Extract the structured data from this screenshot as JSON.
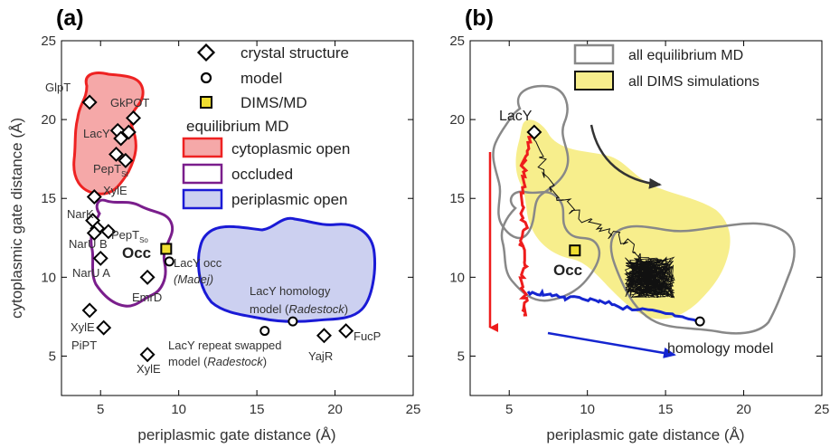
{
  "panels": [
    {
      "label": "(a)",
      "xlabel": "periplasmic gate distance (Å)",
      "ylabel": "cytoplasmic gate distance (Å)"
    },
    {
      "label": "(b)",
      "xlabel": "periplasmic gate distance (Å)",
      "ylabel": ""
    }
  ],
  "legend_a": {
    "crystal": "crystal structure",
    "model": "model",
    "dims": "DIMS/MD",
    "header": "equilibrium MD",
    "cyto": "cytoplasmic open",
    "occl": "occluded",
    "peri": "periplasmic open"
  },
  "legend_b": {
    "eq": "all equilibrium MD",
    "dims": "all DIMS simulations"
  },
  "labels_a": {
    "occ": "Occ",
    "glpt": "GlpT",
    "gkpot": "GkPOT",
    "lacy": "LacY",
    "pept_st": "PepT",
    "pept_st_sub": "St",
    "xyle_top": "XylE",
    "nark": "NarK",
    "pept_so": "PepT",
    "pept_so_sub": "So",
    "naru_b": "NarU B",
    "naru_a": "NarU A",
    "lacy_occ_1": "LacY occ",
    "lacy_occ_2": "(Madej)",
    "emrd": "EmrD",
    "xyle_mid": "XylE",
    "pipt": "PiPT",
    "xyle_bot": "XylE",
    "repeat_1": "LacY repeat swapped",
    "repeat_2a": "model (",
    "repeat_2b": "Radestock",
    "repeat_2c": ")",
    "homol_1": "LacY homology",
    "homol_2a": "model (",
    "homol_2b": "Radestock",
    "homol_2c": ")",
    "yajr": "YajR",
    "fucp": "FucP"
  },
  "labels_b": {
    "lacy": "LacY",
    "occ": "Occ",
    "homology": "homology model"
  },
  "colors": {
    "cytoplasmic_open_edge": "#ee2222",
    "cytoplasmic_open_fill": "#f5a8a8",
    "occluded_edge": "#7a1e8c",
    "periplasmic_open_edge": "#1a1ad6",
    "periplasmic_open_fill": "#ccd0f0",
    "equilibrium_gray": "#888888",
    "dims_fill": "#f7ee8c",
    "dims_marker": "#f0de30",
    "red_trace": "#ee1c1c",
    "blue_trace": "#1525d0"
  },
  "chart_data": [
    {
      "type": "scatter",
      "title": "(a)",
      "xlabel": "periplasmic gate distance (Å)",
      "ylabel": "cytoplasmic gate distance (Å)",
      "xlim": [
        2.5,
        25
      ],
      "ylim": [
        2.5,
        25
      ],
      "xticks": [
        5,
        10,
        15,
        20,
        25
      ],
      "yticks": [
        5,
        10,
        15,
        20,
        25
      ],
      "series": [
        {
          "name": "crystal structure",
          "marker": "diamond",
          "points": [
            {
              "label": "GlpT",
              "x": 4.3,
              "y": 21.1
            },
            {
              "label": "GkPOT",
              "x": 7.1,
              "y": 20.1
            },
            {
              "label": "LacY",
              "x": 6.1,
              "y": 19.3
            },
            {
              "label": "",
              "x": 6.8,
              "y": 19.2
            },
            {
              "label": "",
              "x": 6.3,
              "y": 18.8
            },
            {
              "label": "",
              "x": 6.0,
              "y": 17.8
            },
            {
              "label": "PepT St",
              "x": 6.6,
              "y": 17.4
            },
            {
              "label": "XylE",
              "x": 4.6,
              "y": 15.1
            },
            {
              "label": "NarK",
              "x": 4.5,
              "y": 13.6
            },
            {
              "label": "",
              "x": 4.8,
              "y": 13.1
            },
            {
              "label": "PepT So",
              "x": 5.5,
              "y": 12.9
            },
            {
              "label": "NarU B",
              "x": 4.6,
              "y": 12.8
            },
            {
              "label": "NarU A",
              "x": 5.0,
              "y": 11.2
            },
            {
              "label": "EmrD",
              "x": 8.0,
              "y": 10.0
            },
            {
              "label": "XylE",
              "x": 4.3,
              "y": 7.9
            },
            {
              "label": "PiPT",
              "x": 5.2,
              "y": 6.8
            },
            {
              "label": "XylE",
              "x": 8.0,
              "y": 5.1
            },
            {
              "label": "YajR",
              "x": 19.3,
              "y": 6.3
            },
            {
              "label": "FucP",
              "x": 20.7,
              "y": 6.6
            }
          ]
        },
        {
          "name": "model",
          "marker": "circle",
          "points": [
            {
              "label": "LacY occ (Madej)",
              "x": 9.4,
              "y": 11.0
            },
            {
              "label": "LacY repeat swapped model (Radestock)",
              "x": 15.5,
              "y": 6.6
            },
            {
              "label": "LacY homology model (Radestock)",
              "x": 17.3,
              "y": 7.2
            }
          ]
        },
        {
          "name": "DIMS/MD",
          "marker": "square",
          "points": [
            {
              "label": "Occ",
              "x": 9.2,
              "y": 11.8
            }
          ]
        }
      ],
      "regions": [
        {
          "name": "cytoplasmic open",
          "x_range": [
            3.7,
            9.8
          ],
          "y_range": [
            13.8,
            24.2
          ]
        },
        {
          "name": "occluded",
          "x_range": [
            4.4,
            11.1
          ],
          "y_range": [
            8.1,
            15.2
          ]
        },
        {
          "name": "periplasmic open",
          "x_range": [
            11.5,
            23.8
          ],
          "y_range": [
            7.2,
            13.1
          ]
        }
      ]
    },
    {
      "type": "line",
      "title": "(b)",
      "xlabel": "periplasmic gate distance (Å)",
      "ylabel": "",
      "xlim": [
        2.5,
        25
      ],
      "ylim": [
        2.5,
        25
      ],
      "xticks": [
        5,
        10,
        15,
        20,
        25
      ],
      "yticks": [
        5,
        10,
        15,
        20,
        25
      ],
      "series": [
        {
          "name": "LacY",
          "color": "#ee1c1c",
          "points": [
            {
              "x": 6.6,
              "y": 19.2
            },
            {
              "x": 6.2,
              "y": 18.3
            },
            {
              "x": 5.9,
              "y": 17.1
            },
            {
              "x": 6.0,
              "y": 15.8
            },
            {
              "x": 5.8,
              "y": 14.6
            },
            {
              "x": 6.0,
              "y": 13.2
            },
            {
              "x": 5.7,
              "y": 12.0
            },
            {
              "x": 6.1,
              "y": 10.8
            },
            {
              "x": 5.8,
              "y": 9.6
            },
            {
              "x": 6.1,
              "y": 8.4
            },
            {
              "x": 5.9,
              "y": 7.6
            }
          ]
        },
        {
          "name": "homology model",
          "color": "#1525d0",
          "points": [
            {
              "x": 17.2,
              "y": 7.2
            },
            {
              "x": 15.4,
              "y": 7.8
            },
            {
              "x": 13.2,
              "y": 7.9
            },
            {
              "x": 11.6,
              "y": 8.3
            },
            {
              "x": 10.2,
              "y": 8.5
            },
            {
              "x": 8.6,
              "y": 8.7
            },
            {
              "x": 7.3,
              "y": 8.9
            },
            {
              "x": 6.2,
              "y": 9.1
            }
          ]
        },
        {
          "name": "",
          "color": "#000000",
          "points": [
            {
              "x": 6.6,
              "y": 19.2
            },
            {
              "x": 7.2,
              "y": 17.0
            },
            {
              "x": 8.0,
              "y": 15.2
            },
            {
              "x": 9.6,
              "y": 13.8
            },
            {
              "x": 11.2,
              "y": 12.9
            },
            {
              "x": 12.6,
              "y": 12.2
            },
            {
              "x": 13.5,
              "y": 11.2
            },
            {
              "x": 14.0,
              "y": 10.0
            }
          ]
        }
      ],
      "markers": [
        {
          "label": "LacY",
          "marker": "diamond",
          "x": 6.6,
          "y": 19.2
        },
        {
          "label": "Occ",
          "marker": "square",
          "x": 9.2,
          "y": 11.7
        },
        {
          "label": "homology model",
          "marker": "circle",
          "x": 17.2,
          "y": 7.2
        }
      ]
    }
  ]
}
